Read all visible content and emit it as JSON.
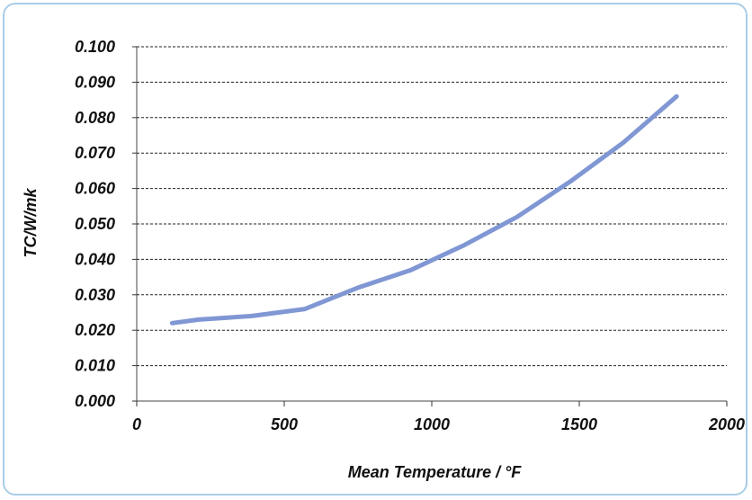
{
  "chart_data": {
    "type": "line",
    "title": "",
    "xlabel": "Mean Temperature / °F",
    "ylabel": "TC/W/mk",
    "xlim": [
      0,
      2000
    ],
    "ylim": [
      0,
      0.1
    ],
    "grid": "horizontal dashed",
    "legend": "none",
    "x_ticks": [
      "0",
      "500",
      "1000",
      "1500",
      "2000"
    ],
    "x_tick_values": [
      0,
      500,
      1000,
      1500,
      2000
    ],
    "y_ticks": [
      "0.000",
      "0.010",
      "0.020",
      "0.030",
      "0.040",
      "0.050",
      "0.060",
      "0.070",
      "0.080",
      "0.090",
      "0.100"
    ],
    "y_tick_values": [
      0,
      0.01,
      0.02,
      0.03,
      0.04,
      0.05,
      0.06,
      0.07,
      0.08,
      0.09,
      0.1
    ],
    "series": [
      {
        "x": [
          120,
          210,
          390,
          570,
          750,
          930,
          1110,
          1290,
          1470,
          1650,
          1830
        ],
        "y": [
          0.022,
          0.023,
          0.024,
          0.026,
          0.032,
          0.037,
          0.044,
          0.052,
          0.062,
          0.073,
          0.086
        ],
        "color": "#8097d4"
      }
    ]
  }
}
